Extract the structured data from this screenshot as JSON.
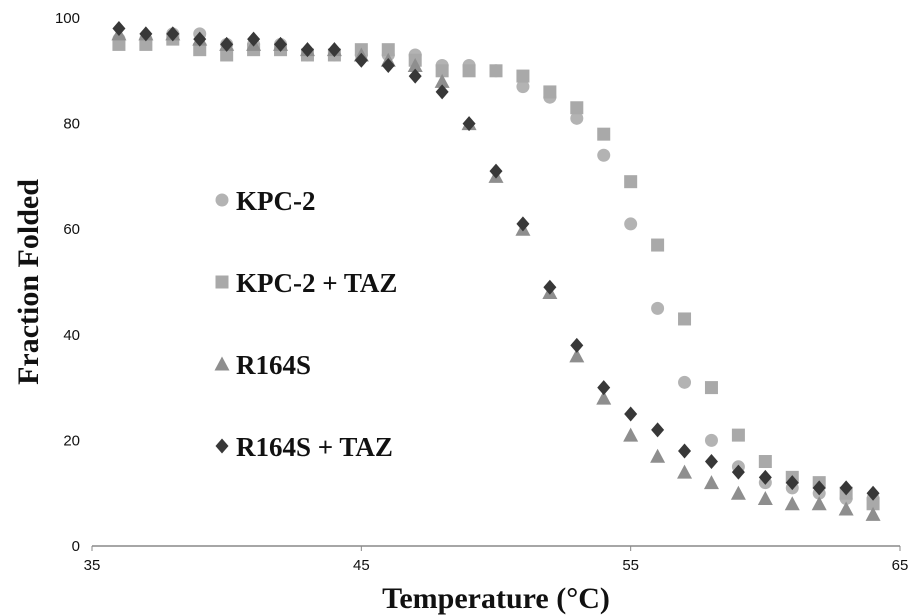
{
  "chart_data": {
    "type": "scatter",
    "x_label": "Temperature (°C)",
    "y_label": "Fraction Folded",
    "xlim": [
      35,
      65
    ],
    "xticks": [
      35,
      45,
      55,
      65
    ],
    "ylim": [
      0,
      100
    ],
    "yticks": [
      0,
      20,
      40,
      60,
      80,
      100
    ],
    "legend": "center left",
    "grid": false,
    "x": [
      36,
      37,
      38,
      39,
      40,
      41,
      42,
      43,
      44,
      45,
      46,
      47,
      48,
      49,
      50,
      51,
      52,
      53,
      54,
      55,
      56,
      57,
      58,
      59,
      60,
      61,
      62,
      63,
      64
    ],
    "series": [
      {
        "name": "KPC-2",
        "marker": "circle",
        "color": "#b3b3b3",
        "values": [
          96,
          96,
          97,
          97,
          95,
          95,
          95,
          93,
          93,
          93,
          93,
          93,
          91,
          91,
          90,
          87,
          85,
          81,
          74,
          61,
          45,
          31,
          20,
          15,
          12,
          11,
          10,
          9,
          9
        ]
      },
      {
        "name": "KPC-2 + TAZ",
        "marker": "square",
        "color": "#a9a9a9",
        "values": [
          95,
          95,
          96,
          94,
          93,
          94,
          94,
          93,
          93,
          94,
          94,
          92,
          90,
          90,
          90,
          89,
          86,
          83,
          78,
          69,
          57,
          43,
          30,
          21,
          16,
          13,
          12,
          10,
          8
        ]
      },
      {
        "name": "R164S",
        "marker": "triangle",
        "color": "#8e8e8e",
        "values": [
          97,
          97,
          97,
          96,
          95,
          95,
          95,
          94,
          94,
          93,
          92,
          91,
          88,
          80,
          70,
          60,
          48,
          36,
          28,
          21,
          17,
          14,
          12,
          10,
          9,
          8,
          8,
          7,
          6
        ]
      },
      {
        "name": "R164S + TAZ",
        "marker": "diamond",
        "color": "#383838",
        "values": [
          98,
          97,
          97,
          96,
          95,
          96,
          95,
          94,
          94,
          92,
          91,
          89,
          86,
          80,
          71,
          61,
          49,
          38,
          30,
          25,
          22,
          18,
          16,
          14,
          13,
          12,
          11,
          11,
          10
        ]
      }
    ]
  }
}
